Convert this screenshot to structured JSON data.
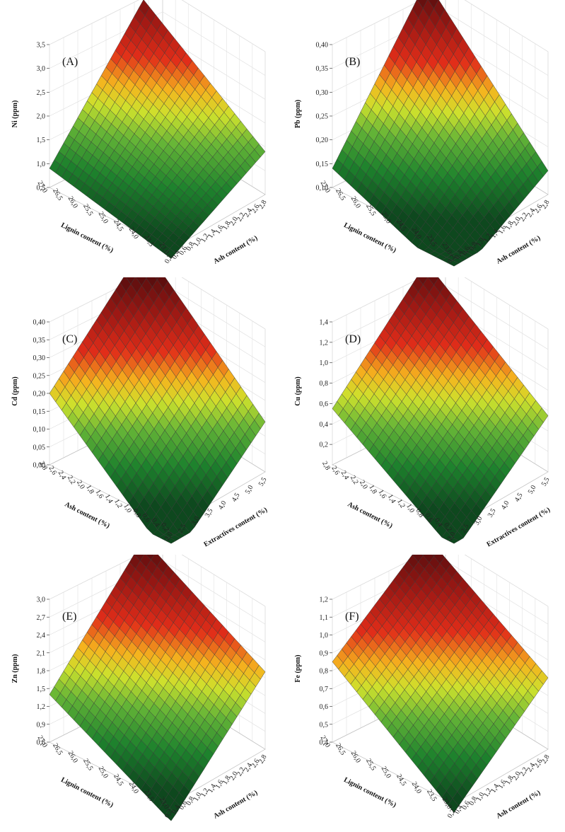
{
  "chart_data": [
    {
      "type": "surface",
      "panel_label": "(A)",
      "zlabel": "Ni (ppm)",
      "zticks": [
        "0,5",
        "1,0",
        "1,5",
        "2,0",
        "2,5",
        "3,0",
        "3,5"
      ],
      "zlim": [
        0.5,
        3.5
      ],
      "left_axis": {
        "label": "Lignin content (%)",
        "ticks": [
          "23,0",
          "23,5",
          "24,0",
          "24,5",
          "25,0",
          "25,5",
          "26,0",
          "26,5",
          "27,0"
        ]
      },
      "right_axis": {
        "label": "Ash content (%)",
        "ticks": [
          "0,2",
          "0,4",
          "0,6",
          "0,8",
          "1,0",
          "1,2",
          "1,4",
          "1,6",
          "1,8",
          "2,0",
          "2,2",
          "2,4",
          "2,6",
          "2,8"
        ]
      },
      "corners": {
        "front": 0.3,
        "left": 0.9,
        "right": 1.4,
        "back": 3.3
      }
    },
    {
      "type": "surface",
      "panel_label": "(B)",
      "zlabel": "Pb (ppm)",
      "zticks": [
        "0,10",
        "0,15",
        "0,20",
        "0,25",
        "0,30",
        "0,35",
        "0,40"
      ],
      "zlim": [
        0.1,
        0.4
      ],
      "left_axis": {
        "label": "Lignin content (%)",
        "ticks": [
          "23,0",
          "23,5",
          "24,0",
          "24,5",
          "25,0",
          "25,5",
          "26,0",
          "26,5",
          "27,0"
        ]
      },
      "right_axis": {
        "label": "Ash content (%)",
        "ticks": [
          "0,2",
          "0,4",
          "0,6",
          "0,8",
          "1,0",
          "1,2",
          "1,4",
          "1,6",
          "1,8",
          "2,0",
          "2,2",
          "2,4",
          "2,6",
          "2,8"
        ]
      },
      "corners": {
        "front": 0.03,
        "left": 0.14,
        "right": 0.15,
        "back": 0.42
      }
    },
    {
      "type": "surface",
      "panel_label": "(C)",
      "zlabel": "Cd (ppm)",
      "zticks": [
        "0,00",
        "0,05",
        "0,10",
        "0,15",
        "0,20",
        "0,25",
        "0,30",
        "0,35",
        "0,40"
      ],
      "zlim": [
        0.0,
        0.4
      ],
      "left_axis": {
        "label": "Ash content (%)",
        "ticks": [
          "0,2",
          "0,4",
          "0,6",
          "0,8",
          "1,0",
          "1,2",
          "1,4",
          "1,6",
          "1,8",
          "2,0",
          "2,2",
          "2,4",
          "2,6",
          "2,8"
        ]
      },
      "right_axis": {
        "label": "Extractives content (%)",
        "ticks": [
          "2,0",
          "2,5",
          "3,0",
          "3,5",
          "4,0",
          "4,5",
          "5,0",
          "5,5"
        ]
      },
      "corners": {
        "front": -0.1,
        "left": 0.2,
        "right": 0.14,
        "back": 0.46
      }
    },
    {
      "type": "surface",
      "panel_label": "(D)",
      "zlabel": "Cu (ppm)",
      "zticks": [
        "0,2",
        "0,4",
        "0,6",
        "0,8",
        "1,0",
        "1,2",
        "1,4"
      ],
      "zlim": [
        0.0,
        1.4
      ],
      "left_axis": {
        "label": "Ash content (%)",
        "ticks": [
          "0,2",
          "0,4",
          "0,6",
          "0,8",
          "1,0",
          "1,2",
          "1,4",
          "1,6",
          "1,8",
          "2,0",
          "2,2",
          "2,4",
          "2,6",
          "2,8"
        ]
      },
      "right_axis": {
        "label": "Extractives content (%)",
        "ticks": [
          "2,0",
          "2,5",
          "3,0",
          "3,5",
          "4,0",
          "4,5",
          "5,0",
          "5,5"
        ]
      },
      "corners": {
        "front": -0.25,
        "left": 0.55,
        "right": 0.55,
        "back": 1.45
      }
    },
    {
      "type": "surface",
      "panel_label": "(E)",
      "zlabel": "Zn (ppm)",
      "zticks": [
        "0,6",
        "0,9",
        "1,2",
        "1,5",
        "1,8",
        "2,1",
        "2,4",
        "2,7",
        "3,0"
      ],
      "zlim": [
        0.6,
        3.0
      ],
      "left_axis": {
        "label": "Lignin content (%)",
        "ticks": [
          "23,0",
          "23,5",
          "24,0",
          "24,5",
          "25,0",
          "25,5",
          "26,0",
          "26,5",
          "27,0"
        ]
      },
      "right_axis": {
        "label": "Ash content (%)",
        "ticks": [
          "0,2",
          "0,4",
          "0,6",
          "0,8",
          "1,0",
          "1,2",
          "1,4",
          "1,6",
          "1,8",
          "2,0",
          "2,2",
          "2,4",
          "2,6",
          "2,8"
        ]
      },
      "corners": {
        "front": 0.3,
        "left": 1.4,
        "right": 1.9,
        "back": 3.1
      }
    },
    {
      "type": "surface",
      "panel_label": "(F)",
      "zlabel": "Fe (ppm)",
      "zticks": [
        "0,4",
        "0,5",
        "0,6",
        "0,7",
        "0,8",
        "0,9",
        "1,0",
        "1,1",
        "1,2"
      ],
      "zlim": [
        0.4,
        1.2
      ],
      "left_axis": {
        "label": "Lignin content (%)",
        "ticks": [
          "23,0",
          "23,5",
          "24,0",
          "24,5",
          "25,0",
          "25,5",
          "26,0",
          "26,5",
          "27,0"
        ]
      },
      "right_axis": {
        "label": "Ash content (%)",
        "ticks": [
          "0,2",
          "0,4",
          "0,6",
          "0,8",
          "1,0",
          "1,2",
          "1,4",
          "1,6",
          "1,8",
          "2,0",
          "2,2",
          "2,4",
          "2,6",
          "2,8"
        ]
      },
      "corners": {
        "front": 0.35,
        "left": 0.85,
        "right": 0.8,
        "back": 1.25
      }
    }
  ]
}
